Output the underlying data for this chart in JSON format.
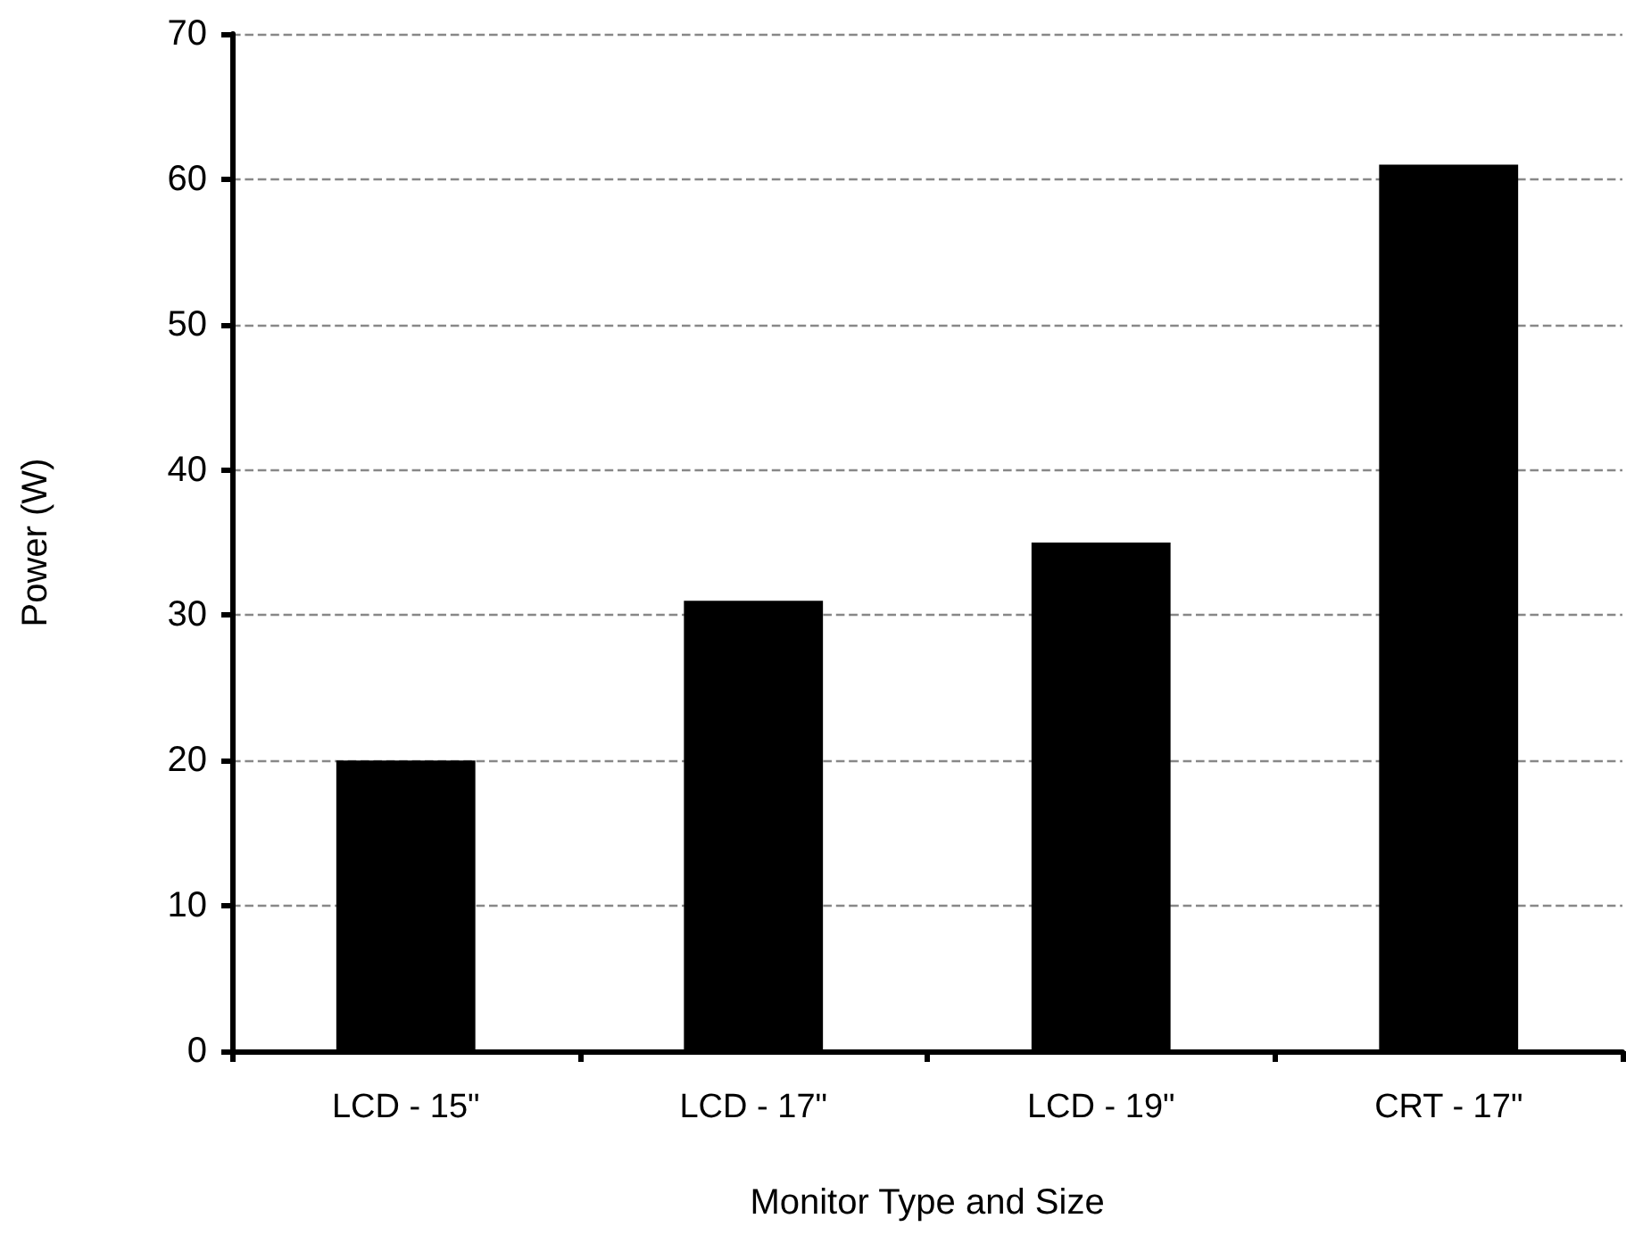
{
  "chart_data": {
    "type": "bar",
    "xlabel": "Monitor Type and Size",
    "ylabel": "Power (W)",
    "categories": [
      "LCD - 15\"",
      "LCD - 17\"",
      "LCD - 19\"",
      "CRT - 17\""
    ],
    "values": [
      20,
      31,
      35,
      61
    ],
    "color": "#000000",
    "ylim": [
      0,
      70
    ],
    "yticks": [
      0,
      10,
      20,
      30,
      40,
      50,
      60,
      70
    ],
    "grid": "y"
  }
}
